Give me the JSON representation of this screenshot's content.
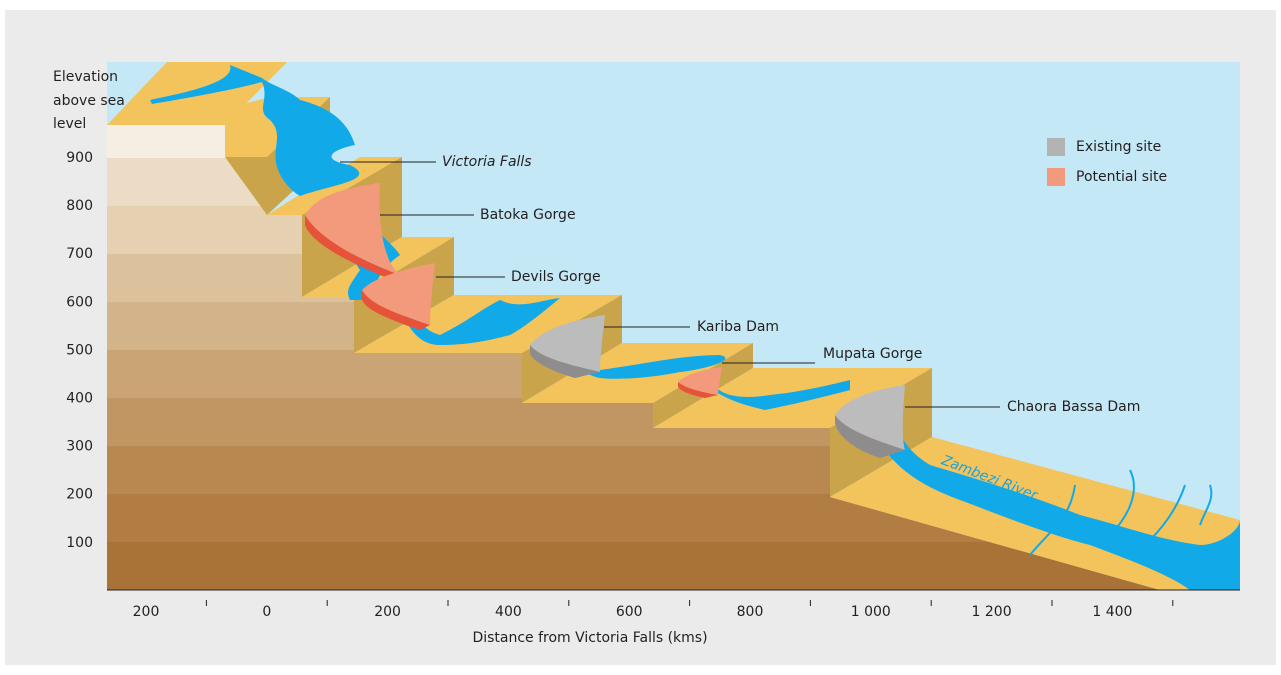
{
  "y_axis": {
    "label": [
      "Elevation",
      "above sea",
      "level"
    ],
    "ticks": [
      "900",
      "800",
      "700",
      "600",
      "500",
      "400",
      "300",
      "200",
      "100"
    ]
  },
  "x_axis": {
    "label": "Distance from Victoria Falls (kms)",
    "ticks": [
      "200",
      "0",
      "200",
      "400",
      "600",
      "800",
      "1 000",
      "1 200",
      "1 400"
    ]
  },
  "sites": [
    {
      "label": "Victoria Falls"
    },
    {
      "label": "Batoka Gorge"
    },
    {
      "label": "Devils Gorge"
    },
    {
      "label": "Kariba Dam"
    },
    {
      "label": "Mupata Gorge"
    },
    {
      "label": "Chaora Bassa Dam"
    }
  ],
  "legend": [
    {
      "label": "Existing site"
    },
    {
      "label": "Potential site"
    }
  ],
  "river_label": "Zambezi River"
}
